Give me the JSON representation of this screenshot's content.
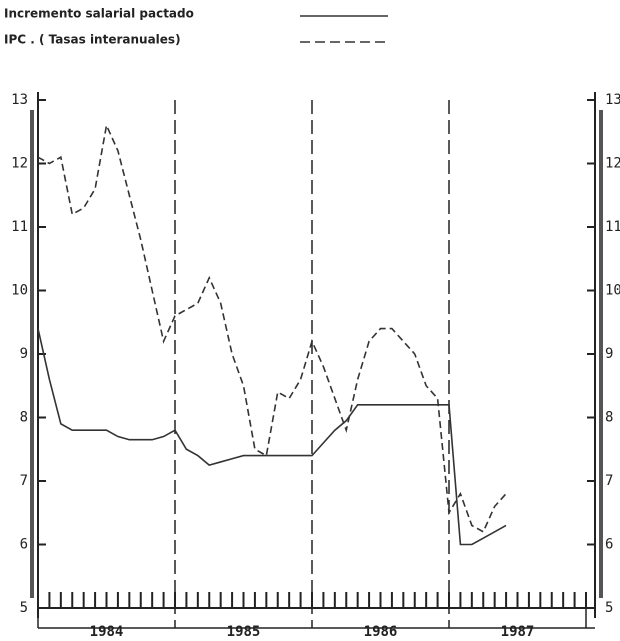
{
  "chart_data": {
    "type": "line",
    "categories": [
      "1984",
      "1985",
      "1986",
      "1987"
    ],
    "x": [
      0,
      1,
      2,
      3,
      4,
      5,
      6,
      7,
      8,
      9,
      10,
      11,
      12,
      13,
      14,
      15,
      16,
      17,
      18,
      19,
      20,
      21,
      22,
      23,
      24,
      25,
      26,
      27,
      28,
      29,
      30,
      31,
      32,
      33,
      34,
      35,
      36,
      37,
      38,
      39,
      40,
      41
    ],
    "xlim": [
      0,
      48
    ],
    "xticks": [
      0,
      12,
      24,
      36,
      48
    ],
    "ylim": [
      5,
      13
    ],
    "yticks": [
      5,
      6,
      7,
      8,
      9,
      10,
      11,
      12,
      13
    ],
    "series": [
      {
        "name": "Incremento salarial pactado",
        "color": "#333333",
        "dash": false,
        "values": [
          9.4,
          8.6,
          7.9,
          7.8,
          7.8,
          7.8,
          7.8,
          7.7,
          7.65,
          7.65,
          7.65,
          7.7,
          7.8,
          7.5,
          7.4,
          7.25,
          7.3,
          7.35,
          7.4,
          7.4,
          7.4,
          7.4,
          7.4,
          7.4,
          7.4,
          7.6,
          7.8,
          7.95,
          8.2,
          8.2,
          8.2,
          8.2,
          8.2,
          8.2,
          8.2,
          8.2,
          8.2,
          6.0,
          6.0,
          6.1,
          6.2,
          6.3
        ]
      },
      {
        "name": "IPC . ( Tasas interanuales)",
        "color": "#333333",
        "dash": true,
        "values": [
          12.1,
          12.0,
          12.1,
          11.2,
          11.3,
          11.6,
          12.6,
          12.2,
          11.5,
          10.8,
          10.0,
          9.2,
          9.6,
          9.7,
          9.8,
          10.2,
          9.8,
          9.0,
          8.5,
          7.5,
          7.4,
          8.4,
          8.3,
          8.6,
          9.2,
          8.8,
          8.3,
          7.8,
          8.6,
          9.2,
          9.4,
          9.4,
          9.2,
          9.0,
          8.5,
          8.3,
          6.5,
          6.8,
          6.3,
          6.2,
          6.6,
          6.8
        ]
      }
    ]
  }
}
